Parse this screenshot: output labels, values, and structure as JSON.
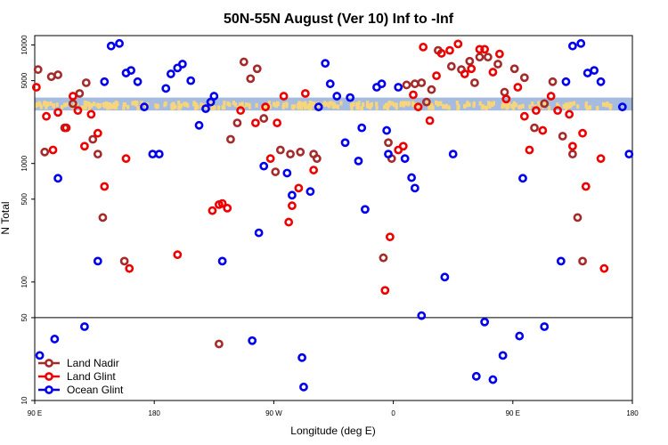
{
  "chart_data": {
    "type": "scatter",
    "title": "50N-55N August (Ver 10)   Inf to -Inf",
    "xlabel": "Longitude (deg E)",
    "ylabel": "N Total",
    "y_scale": "log",
    "ylim": [
      10,
      12000
    ],
    "xlim": [
      0,
      360
    ],
    "x_ticks": [
      {
        "pos": 0,
        "label": "90 E"
      },
      {
        "pos": 72,
        "label": "180"
      },
      {
        "pos": 144,
        "label": "90 W"
      },
      {
        "pos": 216,
        "label": "0"
      },
      {
        "pos": 288,
        "label": "90 E"
      },
      {
        "pos": 360,
        "label": "180"
      }
    ],
    "y_ticks": [
      {
        "value": 10,
        "label": "10"
      },
      {
        "value": 50,
        "label": "50"
      },
      {
        "value": 100,
        "label": "100"
      },
      {
        "value": 500,
        "label": "500"
      },
      {
        "value": 1000,
        "label": "1000"
      },
      {
        "value": 5000,
        "label": "5000"
      },
      {
        "value": 10000,
        "label": "10000"
      }
    ],
    "reference_line": 50,
    "band": {
      "low": 2800,
      "high": 3600,
      "colors": [
        "#a5bbdf",
        "#f7d57a"
      ]
    },
    "legend": {
      "position": "bottom-left",
      "entries": [
        "Land Nadir",
        "Land Glint",
        "Ocean Glint"
      ]
    },
    "series": [
      {
        "name": "Land Nadir",
        "color": "#a52a2a",
        "points": [
          [
            2,
            6200
          ],
          [
            6,
            1250
          ],
          [
            10,
            5400
          ],
          [
            14,
            5600
          ],
          [
            18,
            2000
          ],
          [
            23,
            3200
          ],
          [
            27,
            3900
          ],
          [
            31,
            4800
          ],
          [
            35,
            1600
          ],
          [
            38,
            1200
          ],
          [
            41,
            350
          ],
          [
            54,
            150
          ],
          [
            111,
            30
          ],
          [
            118,
            1600
          ],
          [
            122,
            2200
          ],
          [
            126,
            7200
          ],
          [
            130,
            5200
          ],
          [
            134,
            6300
          ],
          [
            138,
            2400
          ],
          [
            145,
            850
          ],
          [
            148,
            1300
          ],
          [
            154,
            1200
          ],
          [
            160,
            1250
          ],
          [
            168,
            1200
          ],
          [
            170,
            1100
          ],
          [
            210,
            160
          ],
          [
            213,
            1500
          ],
          [
            215,
            1100
          ],
          [
            224,
            4600
          ],
          [
            229,
            4700
          ],
          [
            233,
            4800
          ],
          [
            236,
            3300
          ],
          [
            239,
            4200
          ],
          [
            243,
            9000
          ],
          [
            251,
            6600
          ],
          [
            257,
            6200
          ],
          [
            262,
            7300
          ],
          [
            265,
            4800
          ],
          [
            268,
            7900
          ],
          [
            273,
            7900
          ],
          [
            279,
            6900
          ],
          [
            283,
            4000
          ],
          [
            289,
            6300
          ],
          [
            295,
            5300
          ],
          [
            301,
            2000
          ],
          [
            307,
            3200
          ],
          [
            312,
            4900
          ],
          [
            318,
            1700
          ],
          [
            324,
            1200
          ],
          [
            327,
            350
          ],
          [
            330,
            150
          ]
        ]
      },
      {
        "name": "Land Glint",
        "color": "#ee0000",
        "points": [
          [
            1,
            4400
          ],
          [
            7,
            2500
          ],
          [
            11,
            1300
          ],
          [
            14,
            2700
          ],
          [
            19,
            2000
          ],
          [
            23,
            3700
          ],
          [
            26,
            2800
          ],
          [
            30,
            1400
          ],
          [
            34,
            2600
          ],
          [
            38,
            1800
          ],
          [
            42,
            640
          ],
          [
            55,
            1100
          ],
          [
            57,
            130
          ],
          [
            86,
            170
          ],
          [
            107,
            400
          ],
          [
            111,
            450
          ],
          [
            113,
            460
          ],
          [
            116,
            420
          ],
          [
            124,
            2800
          ],
          [
            133,
            2200
          ],
          [
            139,
            3000
          ],
          [
            142,
            1100
          ],
          [
            146,
            2200
          ],
          [
            150,
            3700
          ],
          [
            153,
            320
          ],
          [
            155,
            440
          ],
          [
            159,
            620
          ],
          [
            163,
            3900
          ],
          [
            168,
            880
          ],
          [
            211,
            85
          ],
          [
            214,
            240
          ],
          [
            219,
            1300
          ],
          [
            222,
            1400
          ],
          [
            228,
            3800
          ],
          [
            231,
            3000
          ],
          [
            234,
            9600
          ],
          [
            238,
            2300
          ],
          [
            242,
            5500
          ],
          [
            245,
            8500
          ],
          [
            250,
            9000
          ],
          [
            255,
            10200
          ],
          [
            259,
            5700
          ],
          [
            263,
            6300
          ],
          [
            268,
            9200
          ],
          [
            271,
            9200
          ],
          [
            276,
            5900
          ],
          [
            280,
            8400
          ],
          [
            284,
            3500
          ],
          [
            291,
            4400
          ],
          [
            295,
            2500
          ],
          [
            298,
            1300
          ],
          [
            302,
            2800
          ],
          [
            306,
            1900
          ],
          [
            311,
            3700
          ],
          [
            315,
            2800
          ],
          [
            322,
            2600
          ],
          [
            324,
            1400
          ],
          [
            330,
            1800
          ],
          [
            332,
            640
          ],
          [
            341,
            1100
          ],
          [
            343,
            130
          ]
        ]
      },
      {
        "name": "Ocean Glint",
        "color": "#0000ee",
        "points": [
          [
            3,
            24
          ],
          [
            12,
            33
          ],
          [
            14,
            750
          ],
          [
            30,
            42
          ],
          [
            38,
            150
          ],
          [
            42,
            4900
          ],
          [
            46,
            9800
          ],
          [
            51,
            10300
          ],
          [
            55,
            5800
          ],
          [
            58,
            6100
          ],
          [
            62,
            4900
          ],
          [
            66,
            3000
          ],
          [
            71,
            1200
          ],
          [
            75,
            1200
          ],
          [
            79,
            4300
          ],
          [
            82,
            5700
          ],
          [
            86,
            6400
          ],
          [
            89,
            6900
          ],
          [
            94,
            5000
          ],
          [
            99,
            2100
          ],
          [
            103,
            2900
          ],
          [
            106,
            3300
          ],
          [
            108,
            3700
          ],
          [
            113,
            150
          ],
          [
            131,
            32
          ],
          [
            135,
            260
          ],
          [
            138,
            950
          ],
          [
            152,
            830
          ],
          [
            155,
            540
          ],
          [
            161,
            23
          ],
          [
            162,
            13
          ],
          [
            166,
            580
          ],
          [
            171,
            3000
          ],
          [
            175,
            7000
          ],
          [
            178,
            4700
          ],
          [
            182,
            3700
          ],
          [
            187,
            1500
          ],
          [
            190,
            3600
          ],
          [
            195,
            1050
          ],
          [
            197,
            2000
          ],
          [
            199,
            410
          ],
          [
            206,
            4400
          ],
          [
            209,
            4700
          ],
          [
            212,
            1900
          ],
          [
            213,
            1200
          ],
          [
            219,
            4400
          ],
          [
            223,
            1100
          ],
          [
            227,
            760
          ],
          [
            229,
            620
          ],
          [
            233,
            52
          ],
          [
            247,
            110
          ],
          [
            252,
            1200
          ],
          [
            266,
            16
          ],
          [
            271,
            46
          ],
          [
            276,
            15
          ],
          [
            282,
            24
          ],
          [
            292,
            35
          ],
          [
            294,
            750
          ],
          [
            307,
            42
          ],
          [
            317,
            150
          ],
          [
            320,
            4900
          ],
          [
            324,
            9800
          ],
          [
            329,
            10300
          ],
          [
            333,
            5800
          ],
          [
            337,
            6100
          ],
          [
            341,
            4900
          ],
          [
            354,
            3000
          ],
          [
            358,
            1200
          ]
        ]
      }
    ]
  }
}
